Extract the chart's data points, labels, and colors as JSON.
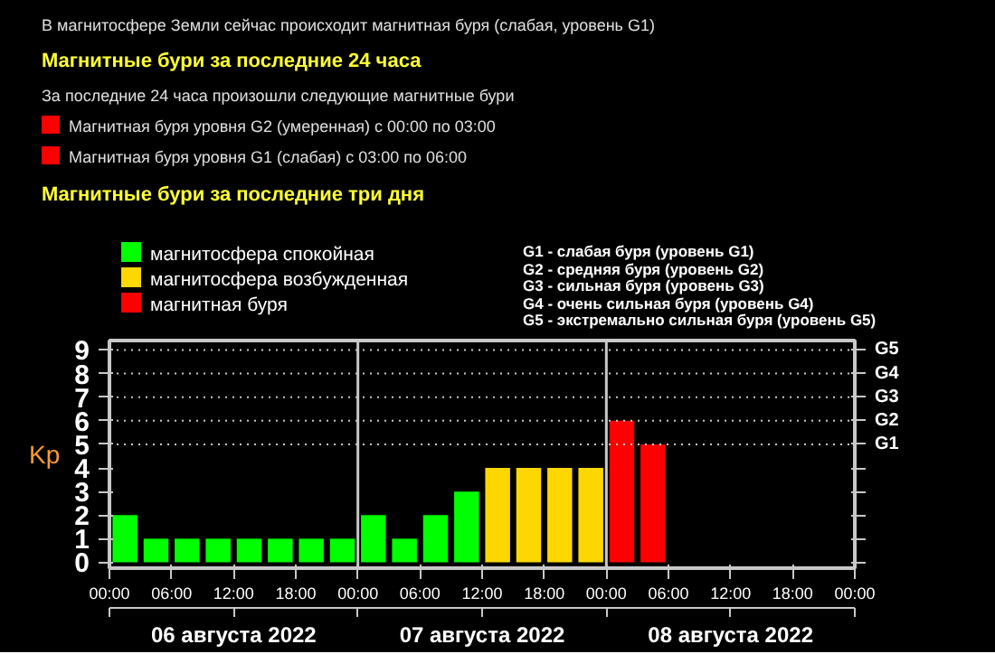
{
  "chart_data": {
    "type": "bar",
    "title": "Магнитные бури за последние три дня",
    "annotations": [
      "В магнитосфере Земли сейчас происходит магнитная буря (слабая, уровень G1)",
      "Магнитные бури за последние 24 часа",
      "За последние 24 часа произошли следующие магнитные бури",
      "Магнитная буря уровня G2 (умеренная) с 00:00 по 03:00",
      "Магнитная буря уровня G1 (слабая) с 03:00 по 06:00",
      "G1 - слабая буря (уровень G1)",
      "G2 - средняя буря (уровень G2)",
      "G3 - сильная буря (уровень G3)",
      "G4 - очень сильная буря (уровень G4)",
      "G5 - экстремально сильная буря (уровень G5)"
    ],
    "ylabel": "Kp",
    "x": [
      "2022-08-06T01:30",
      "2022-08-06T04:30",
      "2022-08-06T07:30",
      "2022-08-06T10:30",
      "2022-08-06T13:30",
      "2022-08-06T16:30",
      "2022-08-06T19:30",
      "2022-08-06T22:30",
      "2022-08-07T01:30",
      "2022-08-07T04:30",
      "2022-08-07T07:30",
      "2022-08-07T10:30",
      "2022-08-07T13:30",
      "2022-08-07T16:30",
      "2022-08-07T19:30",
      "2022-08-07T22:30",
      "2022-08-08T01:30",
      "2022-08-08T04:30"
    ],
    "series": [
      {
        "name": "магнитосфера спокойная",
        "color": "#00ff00",
        "values": [
          2,
          1,
          1,
          1,
          1,
          1,
          1,
          1,
          2,
          1,
          2,
          3,
          null,
          null,
          null,
          null,
          null,
          null
        ]
      },
      {
        "name": "магнитосфера возбужденная",
        "color": "#ffd700",
        "values": [
          null,
          null,
          null,
          null,
          null,
          null,
          null,
          null,
          null,
          null,
          null,
          null,
          4,
          4,
          4,
          4,
          null,
          null
        ]
      },
      {
        "name": "магнитная буря",
        "color": "#ff0000",
        "values": [
          null,
          null,
          null,
          null,
          null,
          null,
          null,
          null,
          null,
          null,
          null,
          null,
          null,
          null,
          null,
          null,
          6,
          5
        ]
      }
    ],
    "xlim": [
      "2022-08-06T00:00",
      "2022-08-09T00:00"
    ],
    "xticks": [
      {
        "value": "2022-08-06T00:00",
        "label": "00:00"
      },
      {
        "value": "2022-08-06T06:00",
        "label": "06:00"
      },
      {
        "value": "2022-08-06T12:00",
        "label": "12:00"
      },
      {
        "value": "2022-08-06T18:00",
        "label": "18:00"
      },
      {
        "value": "2022-08-07T00:00",
        "label": "00:00"
      },
      {
        "value": "2022-08-07T06:00",
        "label": "06:00"
      },
      {
        "value": "2022-08-07T12:00",
        "label": "12:00"
      },
      {
        "value": "2022-08-07T18:00",
        "label": "18:00"
      },
      {
        "value": "2022-08-08T00:00",
        "label": "00:00"
      },
      {
        "value": "2022-08-08T06:00",
        "label": "06:00"
      },
      {
        "value": "2022-08-08T12:00",
        "label": "12:00"
      },
      {
        "value": "2022-08-08T18:00",
        "label": "18:00"
      },
      {
        "value": "2022-08-09T00:00",
        "label": "00:00"
      }
    ],
    "x2lim": [
      "2022-08-06T00:00",
      "2022-08-09T00:00"
    ],
    "x2ticks": [
      {
        "value": "2022-08-06T00:00",
        "label": null
      },
      {
        "value": "2022-08-06T12:00",
        "label": "06 августа 2022"
      },
      {
        "value": "2022-08-07T00:00",
        "label": null
      },
      {
        "value": "2022-08-07T12:00",
        "label": "07 августа 2022"
      },
      {
        "value": "2022-08-08T00:00",
        "label": null
      },
      {
        "value": "2022-08-08T12:00",
        "label": "08 августа 2022"
      },
      {
        "value": "2022-08-09T00:00",
        "label": null
      }
    ],
    "ylim": [
      -0.25,
      9.4
    ],
    "yticks": [
      0,
      1,
      2,
      3,
      4,
      5,
      6,
      7,
      8,
      9
    ],
    "ref_lines": [
      {
        "axis": "x",
        "value": "2022-08-07T00:00",
        "color": "#c8c8c8",
        "line_style": "solid"
      },
      {
        "axis": "x",
        "value": "2022-08-08T00:00",
        "color": "#c8c8c8",
        "line_style": "solid"
      },
      {
        "axis": "y",
        "value": 5,
        "label": "G1",
        "color": "#c8c8c8",
        "line_style": "dotted"
      },
      {
        "axis": "y",
        "value": 6,
        "label": "G2",
        "color": "#c8c8c8",
        "line_style": "dotted"
      },
      {
        "axis": "y",
        "value": 7,
        "label": "G3",
        "color": "#c8c8c8",
        "line_style": "dotted"
      },
      {
        "axis": "y",
        "value": 8,
        "label": "G4",
        "color": "#c8c8c8",
        "line_style": "dotted"
      },
      {
        "axis": "y",
        "value": 9,
        "label": "G5",
        "color": "#c8c8c8",
        "line_style": "dotted"
      }
    ],
    "legend": "top left",
    "grid": false
  }
}
